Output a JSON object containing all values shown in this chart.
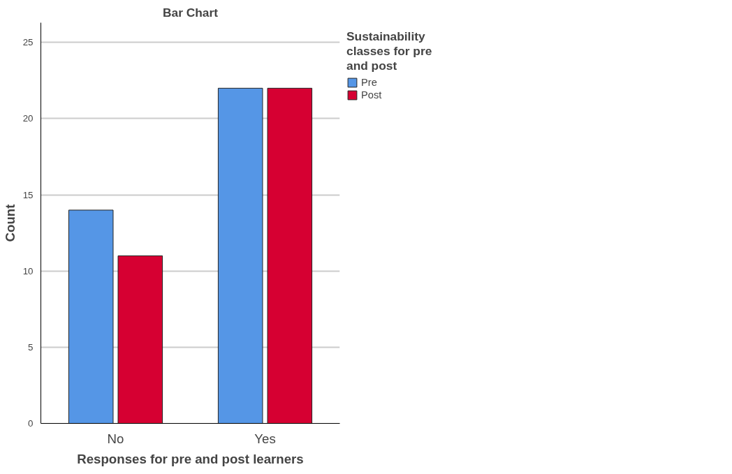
{
  "chart_data": {
    "type": "bar",
    "title": "Bar Chart",
    "xlabel": "Responses for pre and post learners",
    "ylabel": "Count",
    "legend_title": "Sustainability classes for pre and post",
    "categories": [
      "No",
      "Yes"
    ],
    "series": [
      {
        "name": "Pre",
        "color": "#5596e6",
        "values": [
          14,
          22
        ]
      },
      {
        "name": "Post",
        "color": "#d60032",
        "values": [
          11,
          22
        ]
      }
    ],
    "ylim": [
      0,
      26.3
    ],
    "yticks": [
      0,
      5,
      10,
      15,
      20,
      25
    ],
    "grid": "y",
    "legend": "right"
  }
}
